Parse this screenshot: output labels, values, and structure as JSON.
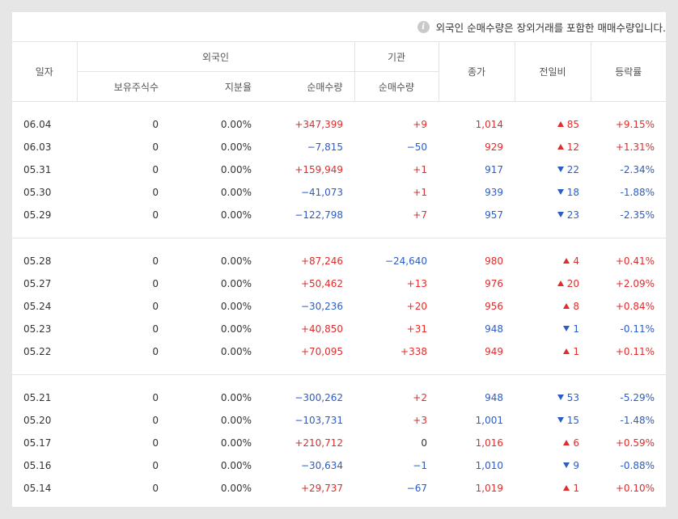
{
  "notice": "외국인 순매수량은 장외거래를 포함한 매매수량입니다.",
  "headers": {
    "date": "일자",
    "foreign": "외국인",
    "institution": "기관",
    "close": "종가",
    "change": "전일비",
    "rate": "등락률",
    "holdings": "보유주식수",
    "ratio": "지분율",
    "net_foreign": "순매수량",
    "net_inst": "순매수량"
  },
  "groups": [
    [
      {
        "date": "06.04",
        "hold": "0",
        "ratio": "0.00%",
        "foreign": "+347,399",
        "inst": "+9",
        "close": "1,014",
        "dir": "up",
        "change": "85",
        "rate": "+9.15%"
      },
      {
        "date": "06.03",
        "hold": "0",
        "ratio": "0.00%",
        "foreign": "−7,815",
        "inst": "−50",
        "close": "929",
        "dir": "up",
        "change": "12",
        "rate": "+1.31%"
      },
      {
        "date": "05.31",
        "hold": "0",
        "ratio": "0.00%",
        "foreign": "+159,949",
        "inst": "+1",
        "close": "917",
        "dir": "down",
        "change": "22",
        "rate": "-2.34%"
      },
      {
        "date": "05.30",
        "hold": "0",
        "ratio": "0.00%",
        "foreign": "−41,073",
        "inst": "+1",
        "close": "939",
        "dir": "down",
        "change": "18",
        "rate": "-1.88%"
      },
      {
        "date": "05.29",
        "hold": "0",
        "ratio": "0.00%",
        "foreign": "−122,798",
        "inst": "+7",
        "close": "957",
        "dir": "down",
        "change": "23",
        "rate": "-2.35%"
      }
    ],
    [
      {
        "date": "05.28",
        "hold": "0",
        "ratio": "0.00%",
        "foreign": "+87,246",
        "inst": "−24,640",
        "close": "980",
        "dir": "up",
        "change": "4",
        "rate": "+0.41%"
      },
      {
        "date": "05.27",
        "hold": "0",
        "ratio": "0.00%",
        "foreign": "+50,462",
        "inst": "+13",
        "close": "976",
        "dir": "up",
        "change": "20",
        "rate": "+2.09%"
      },
      {
        "date": "05.24",
        "hold": "0",
        "ratio": "0.00%",
        "foreign": "−30,236",
        "inst": "+20",
        "close": "956",
        "dir": "up",
        "change": "8",
        "rate": "+0.84%"
      },
      {
        "date": "05.23",
        "hold": "0",
        "ratio": "0.00%",
        "foreign": "+40,850",
        "inst": "+31",
        "close": "948",
        "dir": "down",
        "change": "1",
        "rate": "-0.11%"
      },
      {
        "date": "05.22",
        "hold": "0",
        "ratio": "0.00%",
        "foreign": "+70,095",
        "inst": "+338",
        "close": "949",
        "dir": "up",
        "change": "1",
        "rate": "+0.11%"
      }
    ],
    [
      {
        "date": "05.21",
        "hold": "0",
        "ratio": "0.00%",
        "foreign": "−300,262",
        "inst": "+2",
        "close": "948",
        "dir": "down",
        "change": "53",
        "rate": "-5.29%"
      },
      {
        "date": "05.20",
        "hold": "0",
        "ratio": "0.00%",
        "foreign": "−103,731",
        "inst": "+3",
        "close": "1,001",
        "dir": "down",
        "change": "15",
        "rate": "-1.48%"
      },
      {
        "date": "05.17",
        "hold": "0",
        "ratio": "0.00%",
        "foreign": "+210,712",
        "inst": "0",
        "close": "1,016",
        "dir": "up",
        "change": "6",
        "rate": "+0.59%"
      },
      {
        "date": "05.16",
        "hold": "0",
        "ratio": "0.00%",
        "foreign": "−30,634",
        "inst": "−1",
        "close": "1,010",
        "dir": "down",
        "change": "9",
        "rate": "-0.88%"
      },
      {
        "date": "05.14",
        "hold": "0",
        "ratio": "0.00%",
        "foreign": "+29,737",
        "inst": "−67",
        "close": "1,019",
        "dir": "up",
        "change": "1",
        "rate": "+0.10%"
      }
    ]
  ],
  "colors": {
    "up": "#e02c2c",
    "down": "#2c5cc5"
  }
}
